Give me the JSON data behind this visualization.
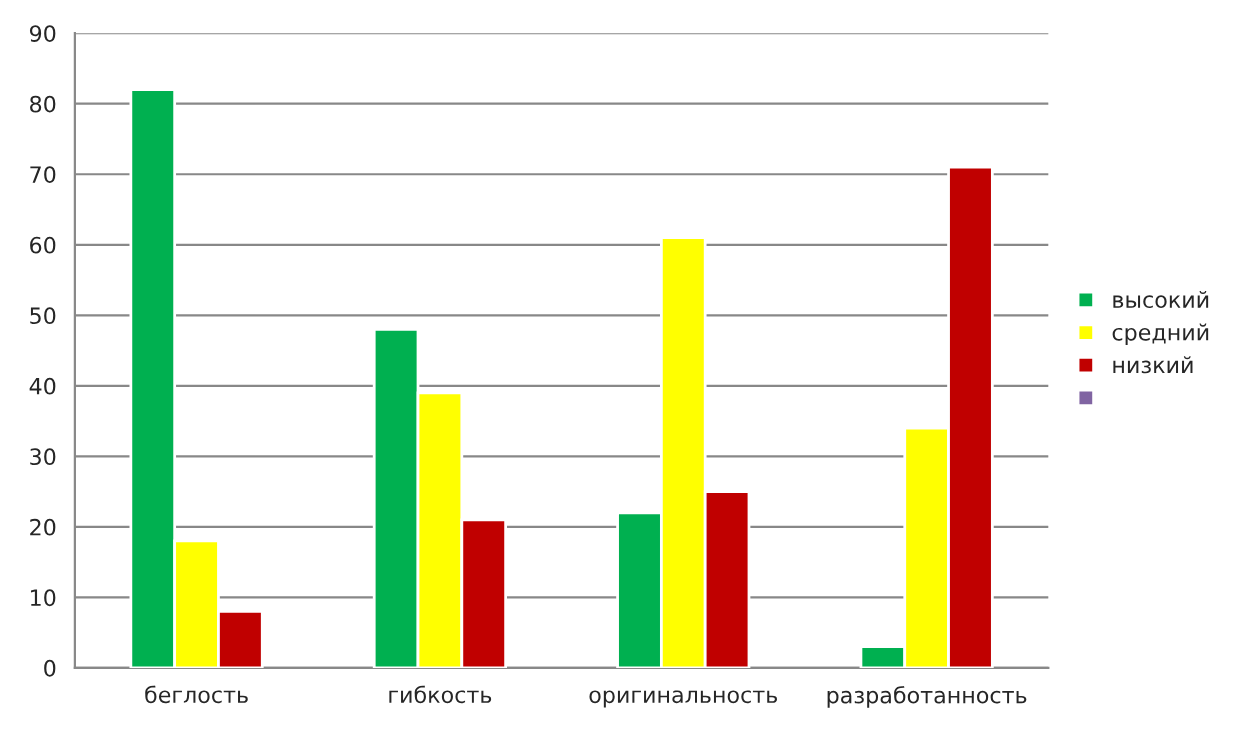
{
  "chart_data": {
    "type": "bar",
    "categories": [
      "беглость",
      "гибкость",
      "оригинальность",
      "разработанность"
    ],
    "series": [
      {
        "name": "высокий",
        "color": "#00b050",
        "values": [
          82,
          48,
          22,
          3
        ]
      },
      {
        "name": "средний",
        "color": "#ffff00",
        "values": [
          18,
          39,
          61,
          34
        ]
      },
      {
        "name": "низкий",
        "color": "#c00000",
        "values": [
          8,
          21,
          25,
          71
        ]
      },
      {
        "color": "#8064a2",
        "values": [
          null,
          null,
          null,
          null
        ]
      }
    ],
    "ylim": [
      0,
      90
    ],
    "yticks": [
      0,
      10,
      20,
      30,
      40,
      50,
      60,
      70,
      80,
      90
    ],
    "grid": "y",
    "legend": "right"
  }
}
